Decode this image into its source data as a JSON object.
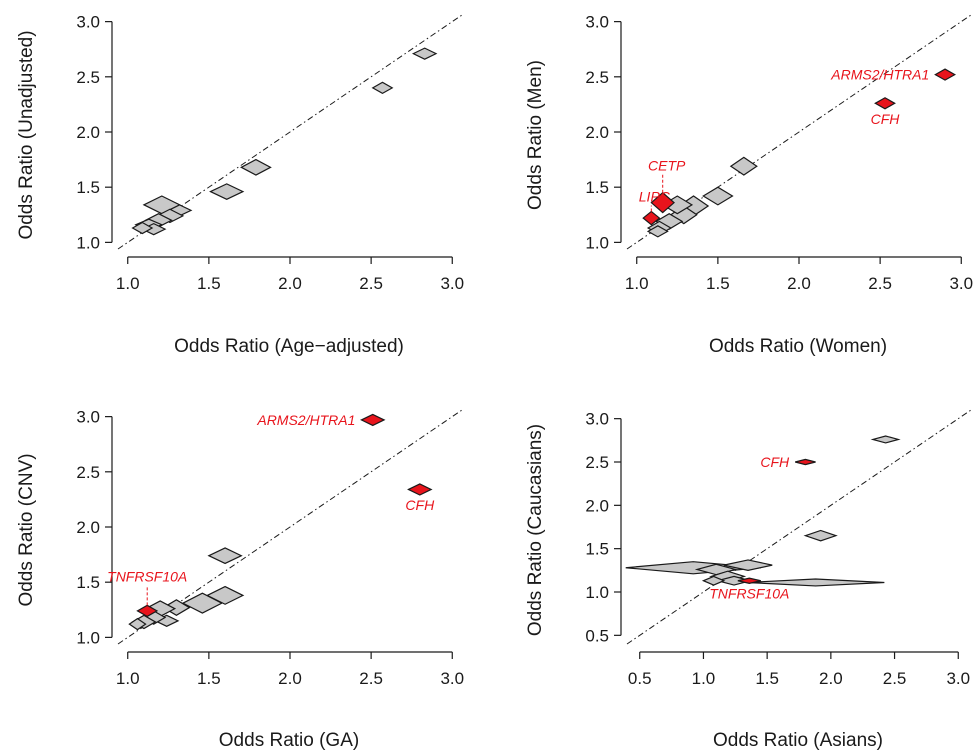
{
  "colors": {
    "gray_marker": "#c8c8c8",
    "highlight_marker": "#e8141c",
    "text": "#1a1a1a"
  },
  "chart_data": [
    {
      "type": "scatter",
      "xlabel": "Odds Ratio (Age−adjusted)",
      "ylabel": "Odds Ratio (Unadjusted)",
      "xlim": [
        0.94,
        3.06
      ],
      "ylim": [
        0.94,
        3.06
      ],
      "xticks": [
        "1.0",
        "1.5",
        "2.0",
        "2.5",
        "3.0"
      ],
      "yticks": [
        "1.0",
        "1.5",
        "2.0",
        "2.5",
        "3.0"
      ],
      "reference_line": "y = x",
      "points": [
        {
          "x": 2.83,
          "y": 2.71,
          "w": 0.07,
          "h": 0.05
        },
        {
          "x": 2.57,
          "y": 2.4,
          "w": 0.06,
          "h": 0.05
        },
        {
          "x": 1.79,
          "y": 1.68,
          "w": 0.09,
          "h": 0.07
        },
        {
          "x": 1.61,
          "y": 1.46,
          "w": 0.1,
          "h": 0.07
        },
        {
          "x": 1.29,
          "y": 1.29,
          "w": 0.1,
          "h": 0.07
        },
        {
          "x": 1.21,
          "y": 1.34,
          "w": 0.11,
          "h": 0.08
        },
        {
          "x": 1.26,
          "y": 1.24,
          "w": 0.08,
          "h": 0.06
        },
        {
          "x": 1.19,
          "y": 1.2,
          "w": 0.08,
          "h": 0.06
        },
        {
          "x": 1.13,
          "y": 1.16,
          "w": 0.08,
          "h": 0.05
        },
        {
          "x": 1.16,
          "y": 1.12,
          "w": 0.07,
          "h": 0.05
        },
        {
          "x": 1.09,
          "y": 1.13,
          "w": 0.06,
          "h": 0.05
        }
      ],
      "highlighted": []
    },
    {
      "type": "scatter",
      "xlabel": "Odds Ratio (Women)",
      "ylabel": "Odds Ratio (Men)",
      "xlim": [
        0.94,
        3.06
      ],
      "ylim": [
        0.94,
        3.06
      ],
      "xticks": [
        "1.0",
        "1.5",
        "2.0",
        "2.5",
        "3.0"
      ],
      "yticks": [
        "1.0",
        "1.5",
        "2.0",
        "2.5",
        "3.0"
      ],
      "reference_line": "y = x",
      "points": [
        {
          "x": 1.66,
          "y": 1.69,
          "w": 0.08,
          "h": 0.08
        },
        {
          "x": 1.5,
          "y": 1.42,
          "w": 0.09,
          "h": 0.08
        },
        {
          "x": 1.35,
          "y": 1.33,
          "w": 0.09,
          "h": 0.09
        },
        {
          "x": 1.29,
          "y": 1.25,
          "w": 0.08,
          "h": 0.08
        },
        {
          "x": 1.25,
          "y": 1.34,
          "w": 0.09,
          "h": 0.08
        },
        {
          "x": 1.2,
          "y": 1.19,
          "w": 0.08,
          "h": 0.07
        },
        {
          "x": 1.14,
          "y": 1.13,
          "w": 0.07,
          "h": 0.06
        },
        {
          "x": 1.13,
          "y": 1.1,
          "w": 0.06,
          "h": 0.05
        }
      ],
      "highlighted": [
        {
          "label": "ARMS2/HTRA1",
          "x": 2.9,
          "y": 2.52,
          "w": 0.06,
          "h": 0.05,
          "label_pos": "left"
        },
        {
          "label": "CFH",
          "x": 2.53,
          "y": 2.26,
          "w": 0.06,
          "h": 0.05,
          "label_pos": "below"
        },
        {
          "label": "CETP",
          "x": 1.16,
          "y": 1.36,
          "w": 0.07,
          "h": 0.09,
          "label_pos": "above-lead"
        },
        {
          "label": "LIPC",
          "x": 1.09,
          "y": 1.22,
          "w": 0.05,
          "h": 0.06,
          "label_pos": "above-lead"
        }
      ]
    },
    {
      "type": "scatter",
      "xlabel": "Odds Ratio (GA)",
      "ylabel": "Odds Ratio (CNV)",
      "xlim": [
        0.94,
        3.06
      ],
      "ylim": [
        0.94,
        3.06
      ],
      "xticks": [
        "1.0",
        "1.5",
        "2.0",
        "2.5",
        "3.0"
      ],
      "yticks": [
        "1.0",
        "1.5",
        "2.0",
        "2.5",
        "3.0"
      ],
      "reference_line": "y = x",
      "points": [
        {
          "x": 1.6,
          "y": 1.74,
          "w": 0.1,
          "h": 0.07
        },
        {
          "x": 1.6,
          "y": 1.38,
          "w": 0.11,
          "h": 0.08
        },
        {
          "x": 1.46,
          "y": 1.31,
          "w": 0.12,
          "h": 0.09
        },
        {
          "x": 1.3,
          "y": 1.27,
          "w": 0.08,
          "h": 0.07
        },
        {
          "x": 1.2,
          "y": 1.26,
          "w": 0.09,
          "h": 0.07
        },
        {
          "x": 1.24,
          "y": 1.15,
          "w": 0.07,
          "h": 0.05
        },
        {
          "x": 1.16,
          "y": 1.18,
          "w": 0.07,
          "h": 0.06
        },
        {
          "x": 1.1,
          "y": 1.14,
          "w": 0.07,
          "h": 0.06
        },
        {
          "x": 1.06,
          "y": 1.12,
          "w": 0.05,
          "h": 0.05
        }
      ],
      "highlighted": [
        {
          "label": "ARMS2/HTRA1",
          "x": 2.51,
          "y": 2.97,
          "w": 0.07,
          "h": 0.05,
          "label_pos": "left"
        },
        {
          "label": "CFH",
          "x": 2.8,
          "y": 2.34,
          "w": 0.07,
          "h": 0.05,
          "label_pos": "below"
        },
        {
          "label": "TNFRSF10A",
          "x": 1.12,
          "y": 1.24,
          "w": 0.06,
          "h": 0.05,
          "label_pos": "above-lead"
        }
      ]
    },
    {
      "type": "scatter",
      "xlabel": "Odds Ratio (Asians)",
      "ylabel": "Odds Ratio (Caucasians)",
      "xlim": [
        0.4,
        3.1
      ],
      "ylim": [
        0.4,
        3.1
      ],
      "xticks": [
        "0.5",
        "1.0",
        "1.5",
        "2.0",
        "2.5",
        "3.0"
      ],
      "yticks": [
        "0.5",
        "1.0",
        "1.5",
        "2.0",
        "2.5",
        "3.0"
      ],
      "reference_line": "y = x",
      "points": [
        {
          "x": 2.43,
          "y": 2.76,
          "w": 0.1,
          "h": 0.04
        },
        {
          "x": 1.92,
          "y": 1.65,
          "w": 0.12,
          "h": 0.06
        },
        {
          "x": 0.92,
          "y": 1.28,
          "w": 0.53,
          "h": 0.07
        },
        {
          "x": 1.35,
          "y": 1.31,
          "w": 0.19,
          "h": 0.06
        },
        {
          "x": 1.1,
          "y": 1.26,
          "w": 0.15,
          "h": 0.06
        },
        {
          "x": 1.19,
          "y": 1.18,
          "w": 0.13,
          "h": 0.06
        },
        {
          "x": 1.24,
          "y": 1.13,
          "w": 0.13,
          "h": 0.05
        },
        {
          "x": 1.88,
          "y": 1.11,
          "w": 0.54,
          "h": 0.04
        },
        {
          "x": 1.08,
          "y": 1.13,
          "w": 0.08,
          "h": 0.05
        }
      ],
      "highlighted": [
        {
          "label": "CFH",
          "x": 1.8,
          "y": 2.5,
          "w": 0.08,
          "h": 0.03,
          "label_pos": "left"
        },
        {
          "label": "TNFRSF10A",
          "x": 1.36,
          "y": 1.13,
          "w": 0.09,
          "h": 0.03,
          "label_pos": "below"
        }
      ]
    }
  ]
}
